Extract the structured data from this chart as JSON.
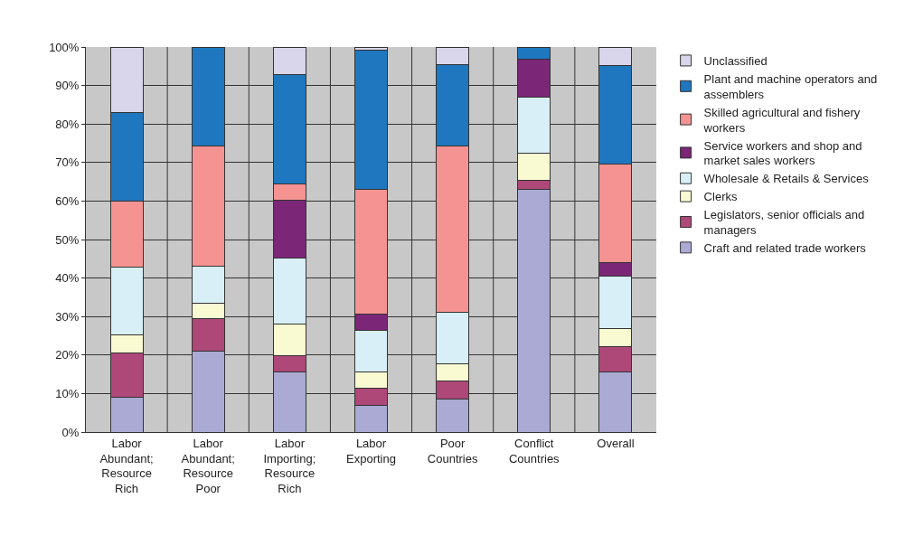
{
  "chart_data": {
    "type": "bar",
    "stacked": true,
    "categories": [
      "Labor Abundant; Resource Rich",
      "Labor Abundant; Resource Poor",
      "Labor Importing; Resource Rich",
      "Labor Exporting",
      "Poor Countries",
      "Conflict Countries",
      "Overall"
    ],
    "series": [
      {
        "name": "Craft and related trade workers",
        "color": "#aaaad5",
        "values": [
          9,
          21,
          15.5,
          7,
          8.6,
          63.1,
          15.6
        ]
      },
      {
        "name": "Legislators, senior officials and managers",
        "color": "#ad4878",
        "values": [
          11.5,
          8.5,
          4.3,
          4.4,
          4.7,
          2.2,
          6.5
        ]
      },
      {
        "name": "Clerks",
        "color": "#fafad2",
        "values": [
          4.7,
          4,
          8.2,
          4.1,
          4.5,
          7.1,
          4.7
        ]
      },
      {
        "name": "Wholesale & Retails & Services",
        "color": "#d8eff8",
        "values": [
          17.6,
          9.5,
          17.1,
          10.9,
          13.4,
          14.5,
          13.6
        ]
      },
      {
        "name": "Service workers and shop and market sales workers",
        "color": "#7b2677",
        "values": [
          null,
          null,
          15.2,
          4.3,
          null,
          9.9,
          3.6
        ]
      },
      {
        "name": "Skilled agricultural and fishery workers",
        "color": "#f59393",
        "values": [
          17.2,
          31.2,
          4.2,
          32.4,
          43.2,
          null,
          25.5
        ]
      },
      {
        "name": "Plant and machine operators and assemblers",
        "color": "#1f77bf",
        "values": [
          23,
          25.8,
          28.4,
          36,
          21.1,
          3.2,
          25.7
        ]
      },
      {
        "name": "Unclassified",
        "color": "#d9d5ea",
        "values": [
          17,
          null,
          7.1,
          0.9,
          4.5,
          null,
          4.8
        ]
      }
    ],
    "ylim": [
      0,
      100
    ],
    "yticks": [
      {
        "value": 0,
        "label": "0%"
      },
      {
        "value": 10,
        "label": "10%"
      },
      {
        "value": 20,
        "label": "20%"
      },
      {
        "value": 30,
        "label": "30%"
      },
      {
        "value": 40,
        "label": "40%"
      },
      {
        "value": 50,
        "label": "50%"
      },
      {
        "value": 60,
        "label": "60%"
      },
      {
        "value": 70,
        "label": "70%"
      },
      {
        "value": 80,
        "label": "80%"
      },
      {
        "value": 90,
        "label": "90%"
      },
      {
        "value": 100,
        "label": "100%"
      }
    ],
    "grid": true,
    "legend": "right"
  }
}
